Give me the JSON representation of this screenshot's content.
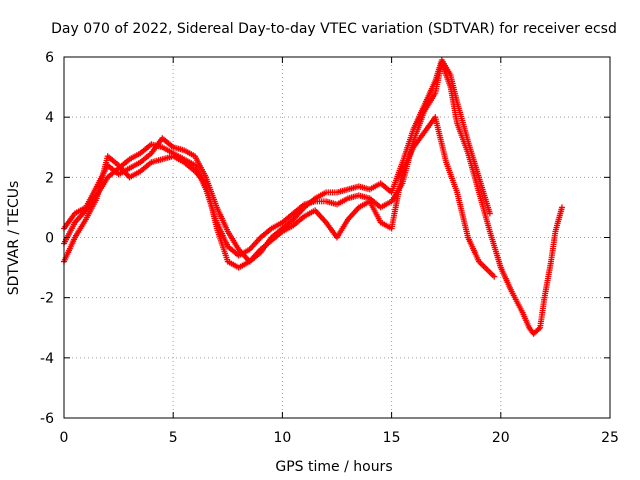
{
  "chart_data": {
    "type": "scatter",
    "title": "Day 070 of 2022, Sidereal Day-to-day VTEC variation (SDTVAR) for receiver ecsd",
    "xlabel": "GPS time / hours",
    "ylabel": "SDTVAR / TECUs",
    "xlim": [
      0,
      25
    ],
    "ylim": [
      -6,
      6
    ],
    "x_ticks": [
      "0",
      "5",
      "10",
      "15",
      "20",
      "25"
    ],
    "y_ticks": [
      "-6",
      "-4",
      "-2",
      "0",
      "2",
      "4",
      "6"
    ],
    "grid": true,
    "marker": "plus",
    "color": "#ff0000",
    "series": [
      {
        "x": [
          0.0,
          0.5,
          1.0,
          1.5,
          2.0,
          2.5,
          3.0,
          3.5,
          4.0,
          4.5,
          5.0,
          5.5,
          6.0,
          6.5,
          7.0,
          7.5,
          8.0,
          8.5,
          9.0,
          9.5,
          10.0,
          10.5,
          11.0,
          11.5,
          12.0,
          12.5,
          13.0,
          13.5,
          14.0,
          14.5,
          15.0,
          15.5,
          16.0,
          16.5,
          17.0,
          17.3,
          17.7,
          18.0,
          18.5,
          19.0,
          19.5,
          20.0,
          20.5,
          21.0,
          21.3,
          21.5,
          21.8,
          22.0,
          22.3,
          22.5,
          22.8
        ],
        "y": [
          -0.2,
          0.5,
          0.9,
          1.4,
          2.0,
          2.3,
          2.6,
          2.8,
          3.1,
          3.0,
          2.8,
          2.6,
          2.4,
          1.6,
          0.5,
          -0.3,
          -0.6,
          -0.4,
          0.0,
          0.3,
          0.5,
          0.8,
          1.1,
          1.2,
          1.2,
          1.1,
          1.3,
          1.4,
          1.3,
          1.0,
          1.2,
          1.8,
          3.2,
          4.2,
          4.8,
          5.8,
          5.0,
          3.8,
          2.8,
          1.5,
          0.2,
          -1.0,
          -1.8,
          -2.5,
          -3.0,
          -3.2,
          -3.0,
          -2.0,
          -0.8,
          0.2,
          1.0
        ]
      },
      {
        "x": [
          0.0,
          0.5,
          1.0,
          1.5,
          2.0,
          2.5,
          3.0,
          3.5,
          4.0,
          4.5,
          5.0,
          5.5,
          6.0,
          6.5,
          7.0,
          7.5,
          8.0,
          8.5,
          9.0,
          9.5,
          10.0,
          10.5,
          11.0,
          11.5,
          12.0,
          12.5,
          13.0,
          13.5,
          14.0,
          14.5,
          15.0,
          15.5,
          16.0,
          16.5,
          17.0,
          17.3,
          17.7,
          18.0,
          18.5,
          19.0,
          19.5
        ],
        "y": [
          0.3,
          0.8,
          1.0,
          1.7,
          2.4,
          2.1,
          2.3,
          2.5,
          2.8,
          3.3,
          3.0,
          2.9,
          2.7,
          2.0,
          1.0,
          0.2,
          -0.4,
          -0.8,
          -0.5,
          0.0,
          0.3,
          0.6,
          1.0,
          1.3,
          1.5,
          1.5,
          1.6,
          1.7,
          1.6,
          1.8,
          1.5,
          2.5,
          3.6,
          4.4,
          5.2,
          5.9,
          5.4,
          4.5,
          3.2,
          2.0,
          0.8
        ]
      },
      {
        "x": [
          0.0,
          0.5,
          1.0,
          1.5,
          2.0,
          2.5,
          3.0,
          3.5,
          4.0,
          4.5,
          5.0,
          5.5,
          6.0,
          6.5,
          7.0,
          7.5,
          8.0,
          8.5,
          9.0,
          9.5,
          10.0,
          10.5,
          11.0,
          11.5,
          12.0,
          12.5,
          13.0,
          13.5,
          14.0,
          14.5,
          15.0,
          15.5,
          16.0,
          16.5,
          17.0,
          17.5,
          18.0,
          18.5,
          19.0,
          19.7
        ],
        "y": [
          -0.8,
          0.0,
          0.6,
          1.3,
          2.7,
          2.4,
          2.0,
          2.2,
          2.5,
          2.6,
          2.7,
          2.5,
          2.2,
          1.8,
          0.3,
          -0.8,
          -1.0,
          -0.8,
          -0.4,
          -0.1,
          0.2,
          0.4,
          0.7,
          0.9,
          0.5,
          0.0,
          0.6,
          1.0,
          1.2,
          0.5,
          0.3,
          2.2,
          3.0,
          3.5,
          4.0,
          2.5,
          1.5,
          0.0,
          -0.8,
          -1.3
        ]
      }
    ]
  }
}
